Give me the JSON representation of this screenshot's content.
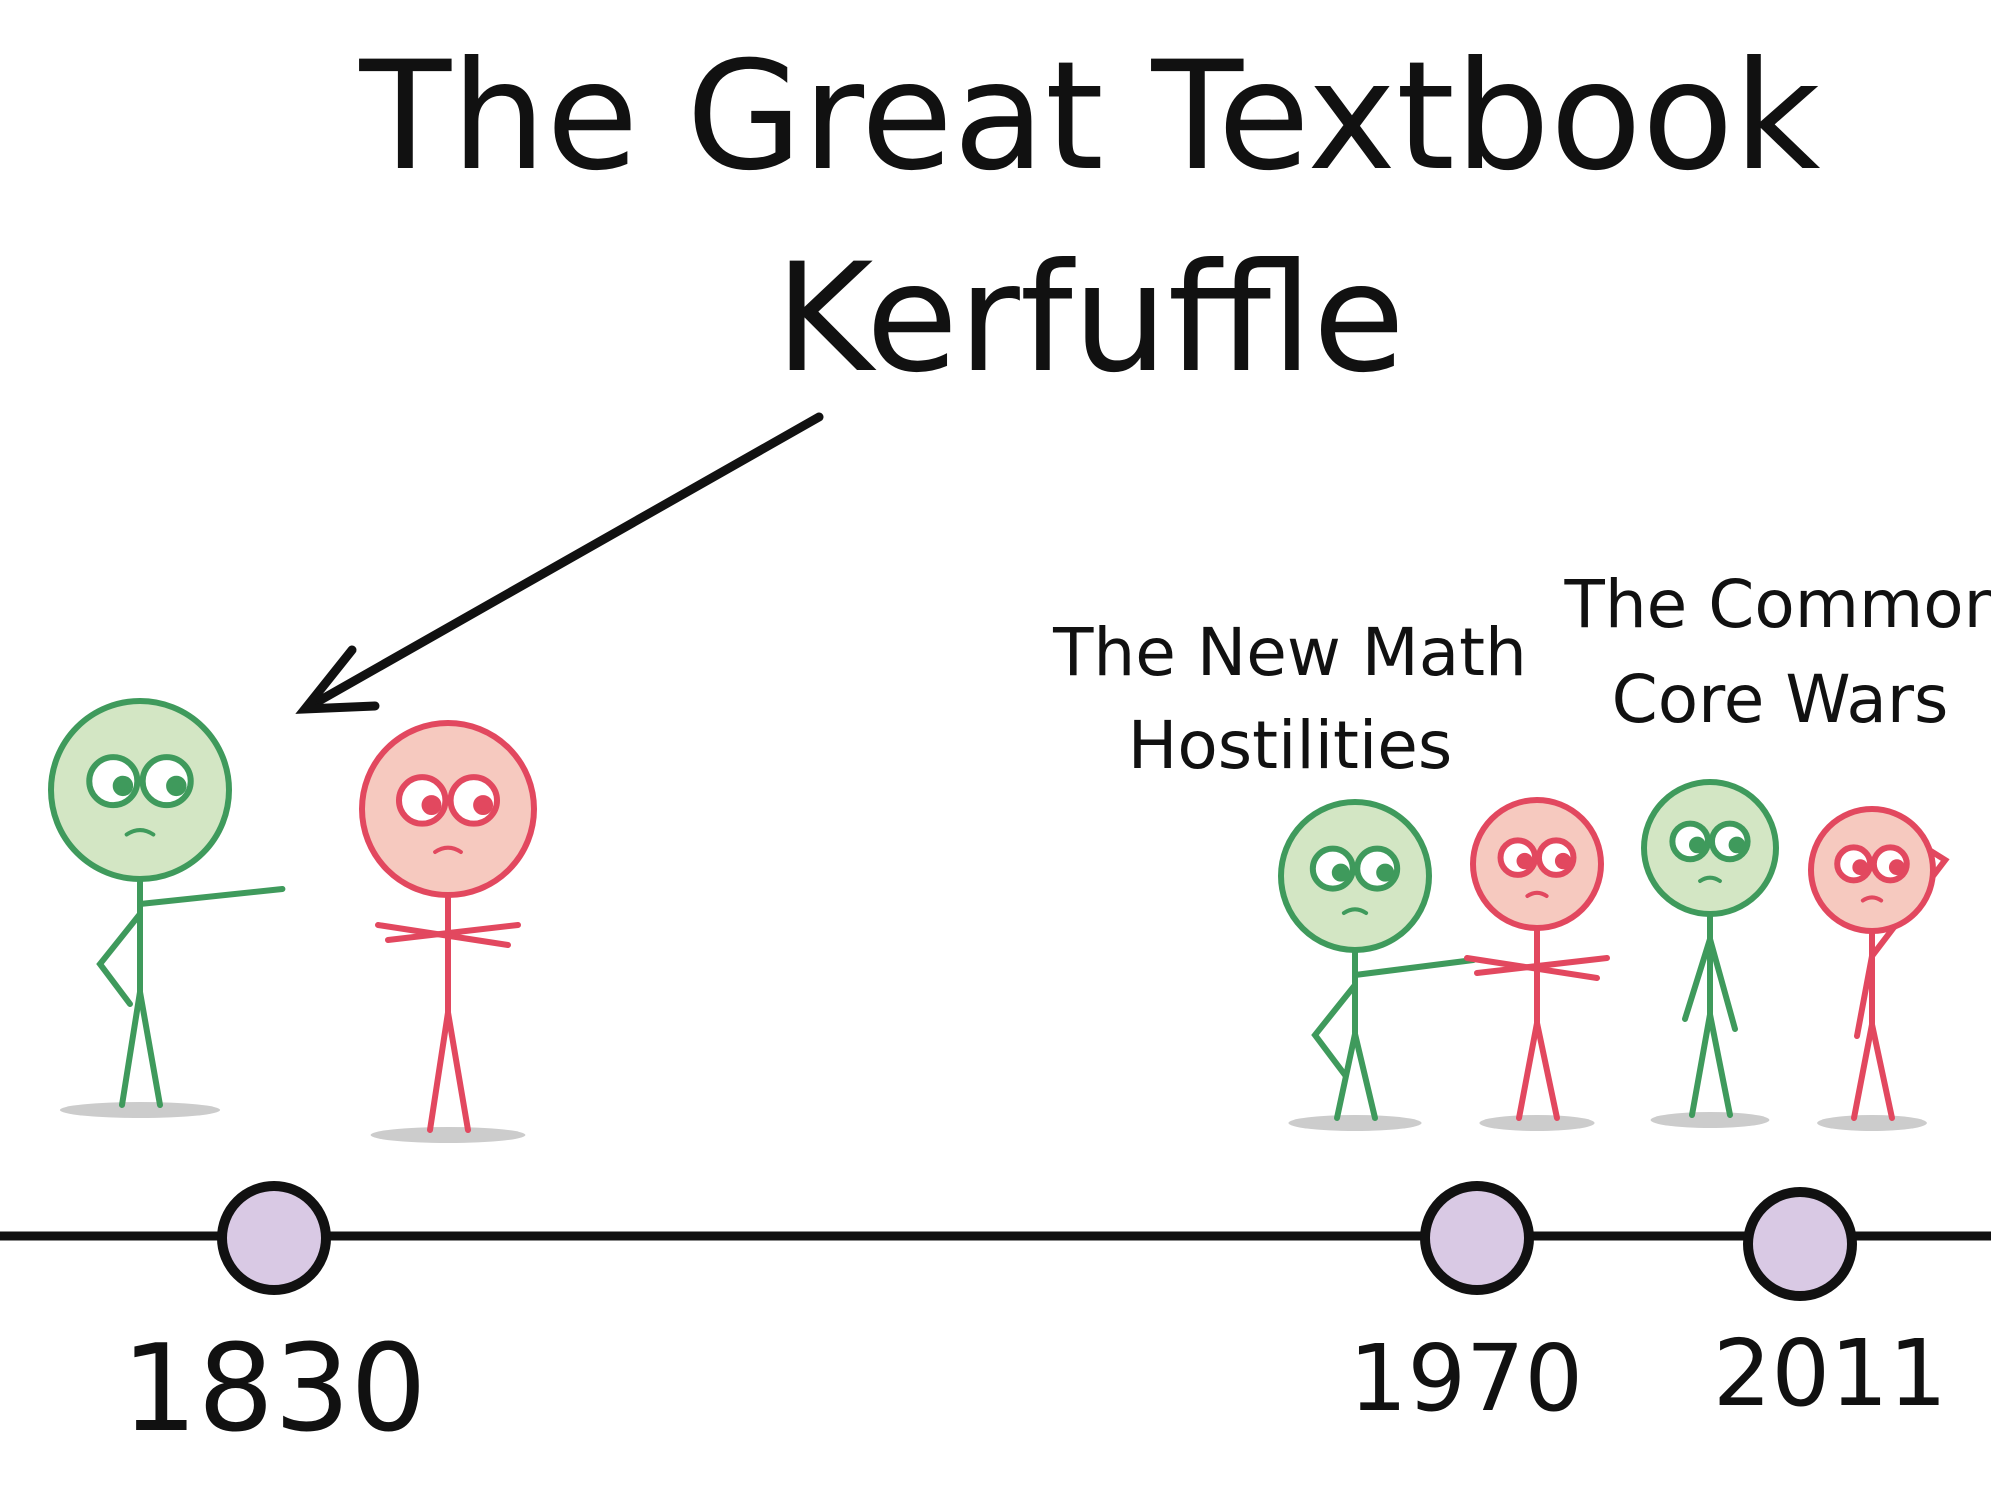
{
  "title": {
    "line1": "The Great Textbook",
    "line2": "Kerfuffle"
  },
  "events": [
    {
      "year": "1830",
      "label_lines": []
    },
    {
      "year": "1970",
      "label_lines": [
        "The New Math",
        "Hostilities"
      ]
    },
    {
      "year": "2011",
      "label_lines": [
        "The Common",
        "Core Wars"
      ]
    }
  ],
  "colors": {
    "green": "#3f9a5c",
    "green_fill": "#d3e6c4",
    "red": "#e2485f",
    "red_fill": "#f6c9bf",
    "marker_fill": "#d9c9e4",
    "line": "#111111"
  }
}
